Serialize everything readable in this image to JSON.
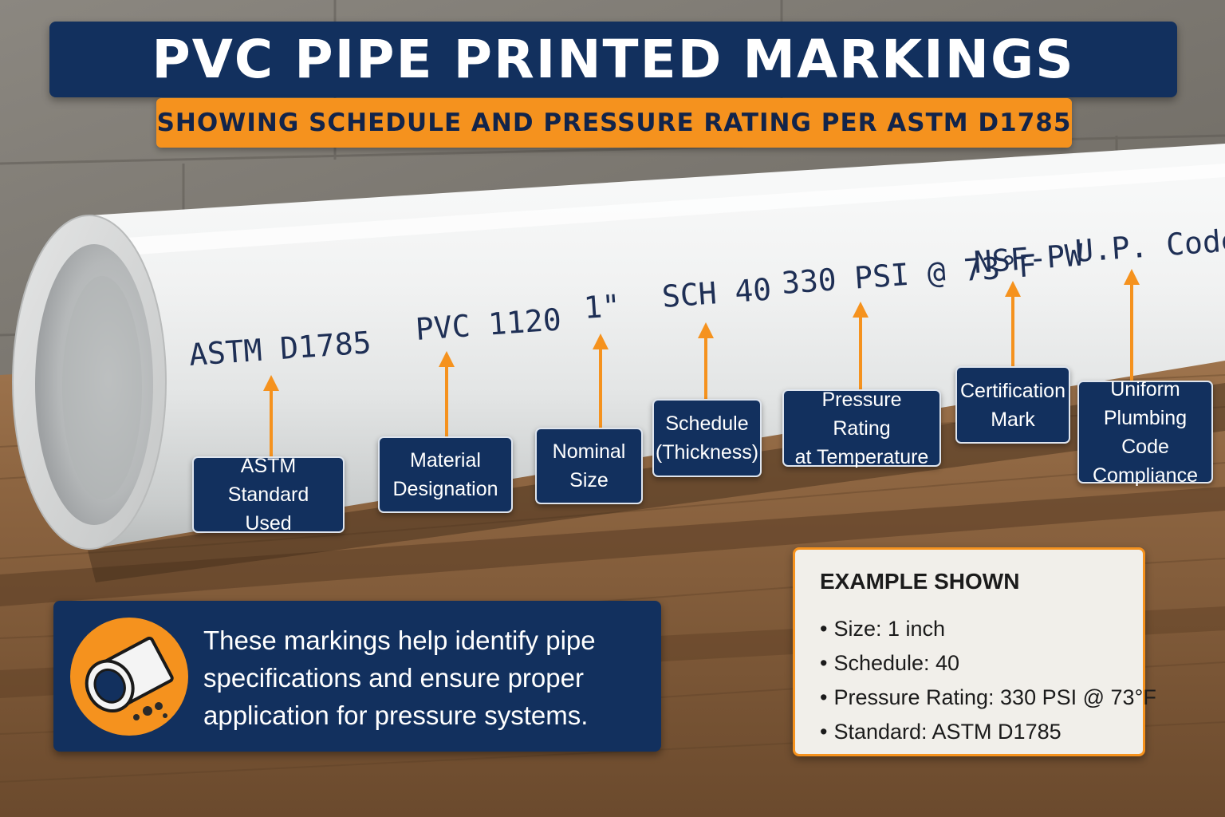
{
  "title": "PVC PIPE PRINTED MARKINGS",
  "subtitle": "SHOWING SCHEDULE AND PRESSURE RATING PER ASTM D1785",
  "pipe_markings": [
    "ASTM D1785",
    "PVC 1120",
    "1\"",
    "SCH 40",
    "330 PSI @ 73°F",
    "NSF-PW",
    "U.P. Code"
  ],
  "callouts": [
    "ASTM Standard\nUsed",
    "Material\nDesignation",
    "Nominal\nSize",
    "Schedule\n(Thickness)",
    "Pressure Rating\nat Temperature",
    "Certification\nMark",
    "Uniform\nPlumbing Code\nCompliance"
  ],
  "info_text": "These markings help identify pipe specifications and ensure proper application for pressure systems.",
  "example": {
    "title": "EXAMPLE SHOWN",
    "items": [
      "Size: 1 inch",
      "Schedule: 40",
      "Pressure Rating: 330 PSI @ 73°F",
      "Standard: ASTM D1785"
    ]
  },
  "colors": {
    "navy": "#12305e",
    "orange": "#f5921e",
    "pipe_white": "#eceeee",
    "marking_ink": "#1e2f55"
  },
  "icons": [
    "pipe-cross-section-icon"
  ]
}
